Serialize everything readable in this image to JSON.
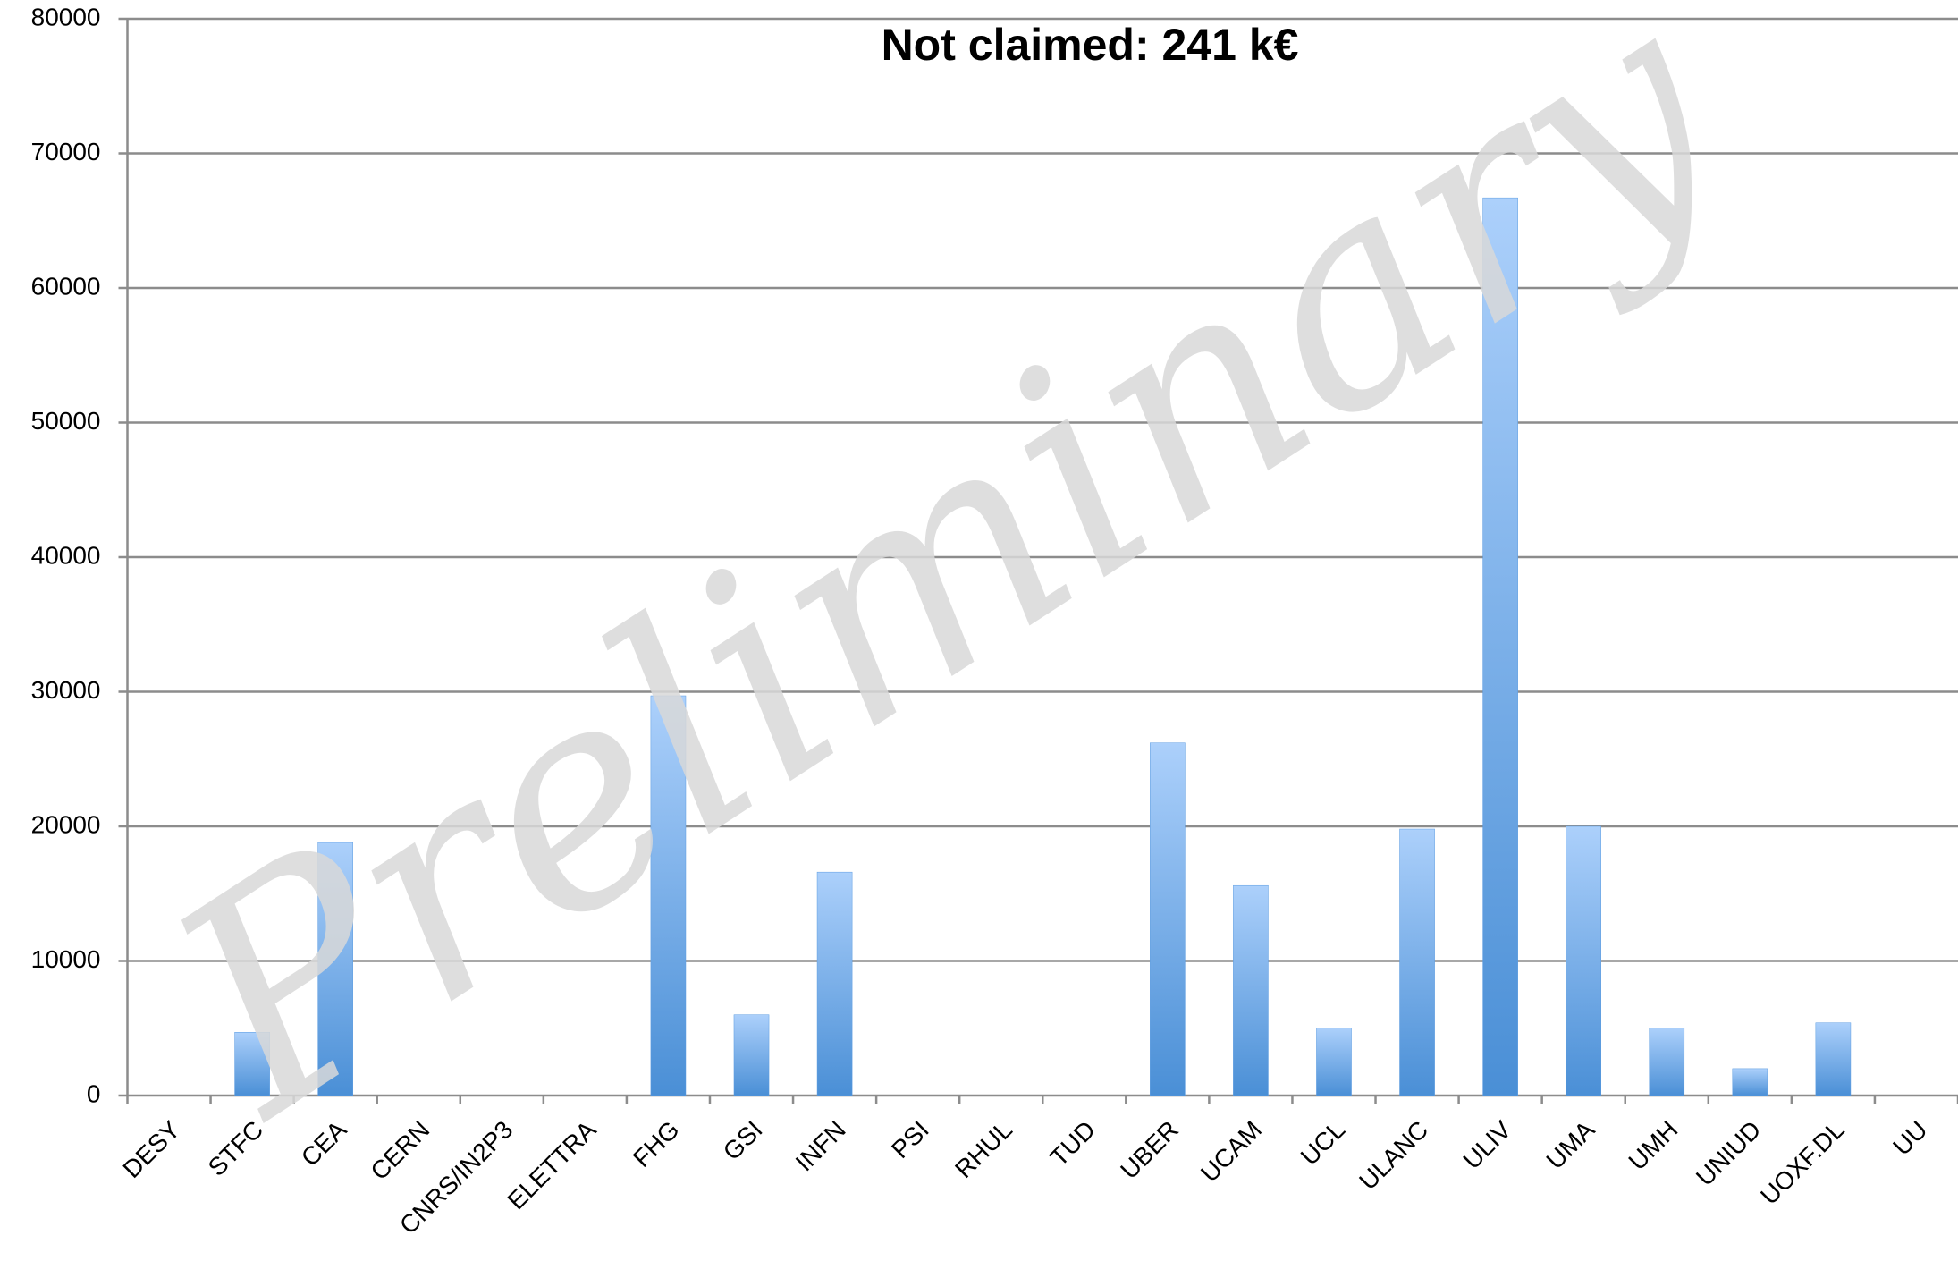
{
  "chart_data": {
    "type": "bar",
    "title": "Not claimed: 241 k€",
    "watermark": "Preliminary",
    "categories": [
      "DESY",
      "STFC",
      "CEA",
      "CERN",
      "CNRS/IN2P3",
      "ELETTRA",
      "FHG",
      "GSI",
      "INFN",
      "PSI",
      "RHUL",
      "TUD",
      "UBER",
      "UCAM",
      "UCL",
      "ULANC",
      "ULIV",
      "UMA",
      "UMH",
      "UNIUD",
      "UOXF.DL",
      "UU"
    ],
    "values": [
      0,
      4700,
      18800,
      0,
      0,
      0,
      29700,
      6000,
      16600,
      0,
      0,
      0,
      26200,
      15600,
      5000,
      19800,
      66700,
      20000,
      5000,
      2000,
      5400,
      0
    ],
    "color": "#5b9be0",
    "ylim": [
      0,
      80000
    ],
    "yticks": [
      0,
      10000,
      20000,
      30000,
      40000,
      50000,
      60000,
      70000,
      80000
    ],
    "grid": true
  }
}
